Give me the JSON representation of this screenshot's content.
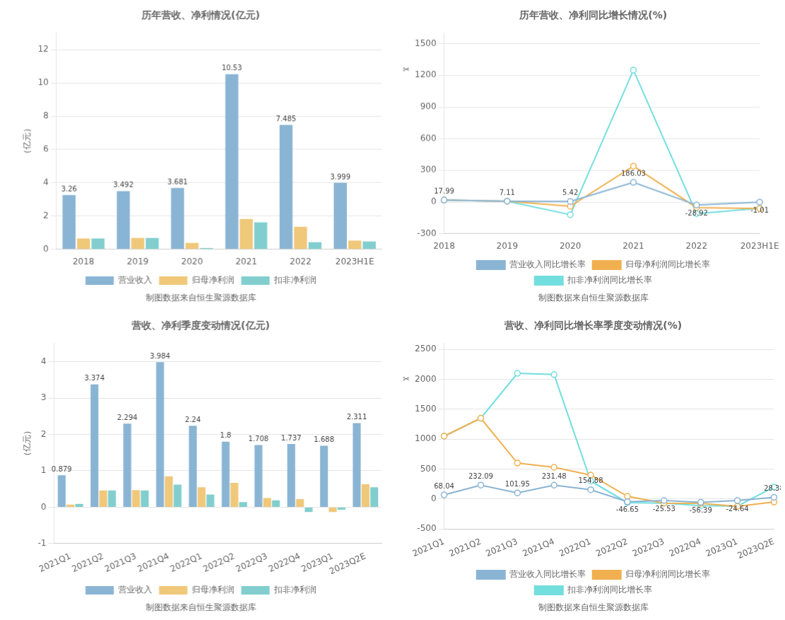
{
  "chart_data": [
    {
      "type": "bar",
      "title": "历年营收、净利情况(亿元)",
      "categories": [
        "2018",
        "2019",
        "2020",
        "2021",
        "2022",
        "2023H1E"
      ],
      "series": [
        {
          "name": "营业收入",
          "color": "#8ab4d4",
          "values": [
            3.26,
            3.492,
            3.681,
            10.53,
            7.485,
            3.999
          ],
          "data_labels": true
        },
        {
          "name": "归母净利润",
          "color": "#f0c87a",
          "values": [
            0.65,
            0.68,
            0.38,
            1.82,
            1.35,
            0.52
          ]
        },
        {
          "name": "扣非净利润",
          "color": "#82cece",
          "values": [
            0.65,
            0.68,
            0.07,
            1.62,
            0.42,
            0.47
          ]
        }
      ],
      "ylabel": "（亿元）",
      "ylim": [
        0,
        13
      ],
      "yticks": [
        0,
        2,
        4,
        6,
        8,
        10,
        12
      ],
      "grid": "y",
      "legend": "bottom",
      "annotations": [
        {
          "text": "制图数据来自恒生聚源数据库"
        }
      ]
    },
    {
      "type": "line",
      "title": "历年营收、净利同比增长情况(%)",
      "categories": [
        "2018",
        "2019",
        "2020",
        "2021",
        "2022",
        "2023H1E"
      ],
      "series": [
        {
          "name": "营业收入同比增长率",
          "color": "#8ab4d4",
          "marker": "circle",
          "values": [
            17.99,
            7.11,
            5.42,
            186.03,
            -28.92,
            -1.01
          ],
          "data_labels": true
        },
        {
          "name": "归母净利润同比增长率",
          "color": "#f0b050",
          "marker": "circle",
          "values": [
            17.99,
            7.11,
            -40.0,
            340.0,
            -53.0,
            -62.0
          ]
        },
        {
          "name": "扣非净利润同比增长率",
          "color": "#72dede",
          "marker": "circle",
          "values": [
            17.99,
            7.11,
            -120.0,
            1250.0,
            -110.0,
            -60.0
          ]
        }
      ],
      "ylim": [
        -300,
        1600
      ],
      "yticks": [
        -300,
        0,
        300,
        600,
        900,
        1200,
        1500
      ],
      "grid": "y",
      "legend": "bottom",
      "annotations": [
        {
          "text": "✂",
          "y": 1250
        },
        {
          "text": "制图数据来自恒生聚源数据库"
        }
      ]
    },
    {
      "type": "bar",
      "title": "营收、净利季度变动情况(亿元)",
      "categories": [
        "2021Q1",
        "2021Q2",
        "2021Q3",
        "2021Q4",
        "2022Q1",
        "2022Q2",
        "2022Q3",
        "2022Q4",
        "2023Q1",
        "2023Q2E"
      ],
      "series": [
        {
          "name": "营业收入",
          "color": "#8ab4d4",
          "values": [
            0.879,
            3.374,
            2.294,
            3.984,
            2.24,
            1.8,
            1.708,
            1.737,
            1.688,
            2.311
          ],
          "data_labels": true
        },
        {
          "name": "归母净利润",
          "color": "#f0c87a",
          "values": [
            0.07,
            0.46,
            0.47,
            0.85,
            0.55,
            0.67,
            0.25,
            0.22,
            -0.13,
            0.63
          ]
        },
        {
          "name": "扣非净利润",
          "color": "#82cece",
          "values": [
            0.09,
            0.46,
            0.46,
            0.62,
            0.35,
            0.14,
            0.19,
            -0.13,
            -0.07,
            0.55
          ]
        }
      ],
      "ylabel": "（亿元）",
      "ylim": [
        -1,
        4.5
      ],
      "yticks": [
        -1,
        0,
        1,
        2,
        3,
        4
      ],
      "grid": "y",
      "legend": "bottom",
      "annotations": [
        {
          "text": "制图数据来自恒生聚源数据库"
        }
      ]
    },
    {
      "type": "line",
      "title": "营收、净利同比增长率季度变动情况(%)",
      "categories": [
        "2021Q1",
        "2021Q2",
        "2021Q3",
        "2021Q4",
        "2022Q1",
        "2022Q2",
        "2022Q3",
        "2022Q4",
        "2023Q1",
        "2023Q2E"
      ],
      "series": [
        {
          "name": "营业收入同比增长率",
          "color": "#8ab4d4",
          "marker": "circle",
          "values": [
            68.04,
            232.09,
            101.95,
            231.48,
            154.88,
            -46.65,
            -25.53,
            -56.39,
            -24.64,
            28.38
          ],
          "data_labels": true
        },
        {
          "name": "归母净利润同比增长率",
          "color": "#f0b050",
          "marker": "circle",
          "values": [
            1050.0,
            1350.0,
            600.0,
            530.0,
            400.0,
            45.0,
            -70.0,
            -74.0,
            -124.0,
            -50.0
          ]
        },
        {
          "name": "扣非净利润同比增长率",
          "color": "#72dede",
          "marker": "circle",
          "values": [
            1050.0,
            1350.0,
            2100.0,
            2080.0,
            300.0,
            -60.0,
            -70.0,
            -110.0,
            -120.0,
            200.0
          ]
        }
      ],
      "ylim": [
        -500,
        2600
      ],
      "yticks": [
        -500,
        0,
        500,
        1000,
        1500,
        2000,
        2500
      ],
      "grid": "y",
      "legend": "bottom",
      "annotations": [
        {
          "text": "✂",
          "y": 2000
        },
        {
          "text": "制图数据来自恒生聚源数据库"
        }
      ]
    }
  ]
}
